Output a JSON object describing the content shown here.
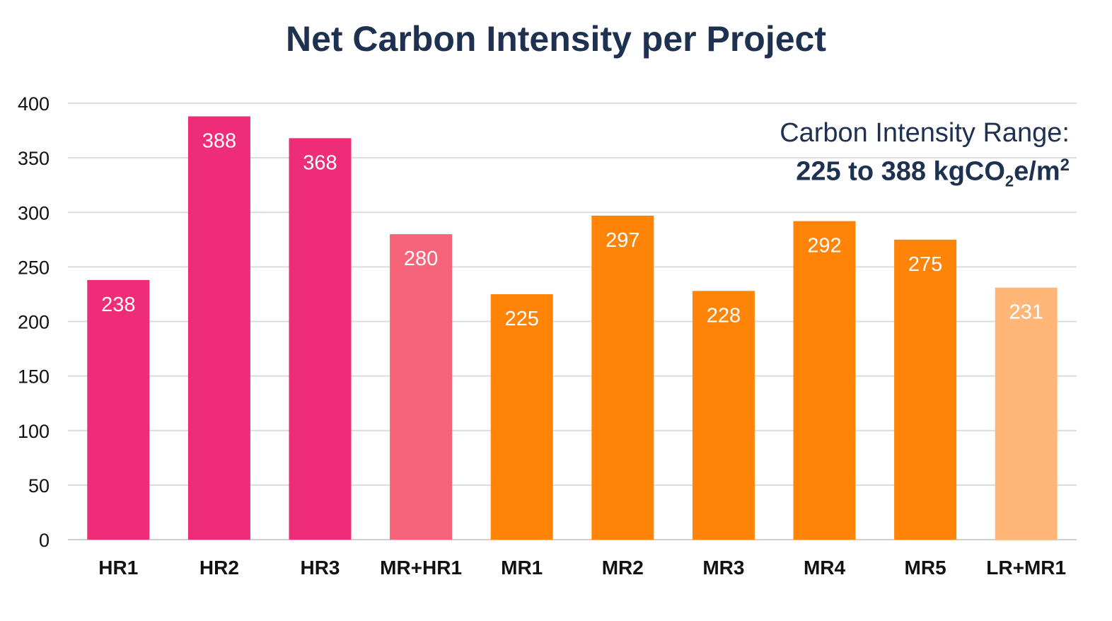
{
  "chart_data": {
    "type": "bar",
    "title": "Net Carbon Intensity per Project",
    "categories": [
      "HR1",
      "HR2",
      "HR3",
      "MR+HR1",
      "MR1",
      "MR2",
      "MR3",
      "MR4",
      "MR5",
      "LR+MR1"
    ],
    "values": [
      238,
      388,
      368,
      280,
      225,
      297,
      228,
      292,
      275,
      231
    ],
    "bar_colors": [
      "#ee2c78",
      "#ee2c78",
      "#ee2c78",
      "#f6647a",
      "#ff8407",
      "#ff8407",
      "#ff8407",
      "#ff8407",
      "#ff8407",
      "#ffb677"
    ],
    "data_labels": [
      "238",
      "388",
      "368",
      "280",
      "225",
      "297",
      "228",
      "292",
      "275",
      "231"
    ],
    "ylim": [
      0,
      400
    ],
    "yticks": [
      0,
      50,
      100,
      150,
      200,
      250,
      300,
      350,
      400
    ],
    "ytick_labels": [
      "0",
      "50",
      "100",
      "150",
      "200",
      "250",
      "300",
      "350",
      "400"
    ],
    "xlabel": "",
    "ylabel": "",
    "grid": true,
    "legend": "none",
    "annotation": {
      "line1": "Carbon Intensity Range:",
      "line2_prefix": "225 to 388 kgCO",
      "line2_sub": "2",
      "line2_mid": "e/m",
      "line2_sup": "2"
    }
  },
  "colors": {
    "title": "#1f3151",
    "axis_text": "#111111",
    "gridline": "#dcdcdc",
    "data_label": "#ffffff"
  }
}
